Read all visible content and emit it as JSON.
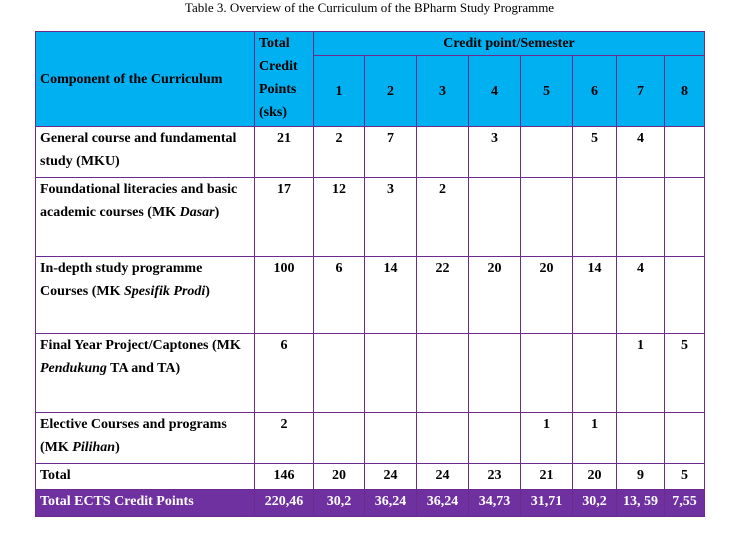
{
  "caption": "Table 3. Overview of the Curriculum of the BPharm Study Programme",
  "header": {
    "component": "Component of the Curriculum",
    "total_lines": [
      "Total",
      "Credit",
      "Points",
      "(sks)"
    ],
    "credit_semester": "Credit point/Semester",
    "semesters": [
      "1",
      "2",
      "3",
      "4",
      "5",
      "6",
      "7",
      "8"
    ]
  },
  "rows": [
    {
      "label_parts": [
        {
          "t": "General course and fundamental study (MKU)",
          "i": false
        }
      ],
      "total": "21",
      "values": [
        "2",
        "7",
        "",
        "3",
        "",
        "5",
        "4",
        ""
      ]
    },
    {
      "label_parts": [
        {
          "t": "Foundational literacies and basic academic courses (MK ",
          "i": false
        },
        {
          "t": "Dasar",
          "i": true
        },
        {
          "t": ")",
          "i": false
        }
      ],
      "total": "17",
      "values": [
        "12",
        "3",
        "2",
        "",
        "",
        "",
        "",
        ""
      ]
    },
    {
      "label_parts": [
        {
          "t": "In-depth study programme Courses (MK ",
          "i": false
        },
        {
          "t": "Spesifik Prodi",
          "i": true
        },
        {
          "t": ")",
          "i": false
        }
      ],
      "total": "100",
      "values": [
        "6",
        "14",
        "22",
        "20",
        "20",
        "14",
        "4",
        ""
      ]
    },
    {
      "label_parts": [
        {
          "t": "Final Year Project/Captones (MK ",
          "i": false
        },
        {
          "t": "Pendukung",
          "i": true
        },
        {
          "t": " TA and TA)",
          "i": false
        }
      ],
      "total": "6",
      "values": [
        "",
        "",
        "",
        "",
        "",
        "",
        "1",
        "5"
      ]
    },
    {
      "label_parts": [
        {
          "t": "Elective Courses and programs (MK ",
          "i": false
        },
        {
          "t": "Pilihan",
          "i": true
        },
        {
          "t": ")",
          "i": false
        }
      ],
      "total": "2",
      "values": [
        "",
        "",
        "",
        "",
        "1",
        "1",
        "",
        ""
      ]
    },
    {
      "label_parts": [
        {
          "t": "Total",
          "i": false
        }
      ],
      "total": "146",
      "values": [
        "20",
        "24",
        "24",
        "23",
        "21",
        "20",
        "9",
        "5"
      ]
    }
  ],
  "ects": {
    "label": "Total ECTS Credit Points",
    "total": "220,46",
    "values": [
      "30,2",
      "36,24",
      "36,24",
      "34,73",
      "31,71",
      "30,2",
      "13, 59",
      "7,55"
    ]
  }
}
